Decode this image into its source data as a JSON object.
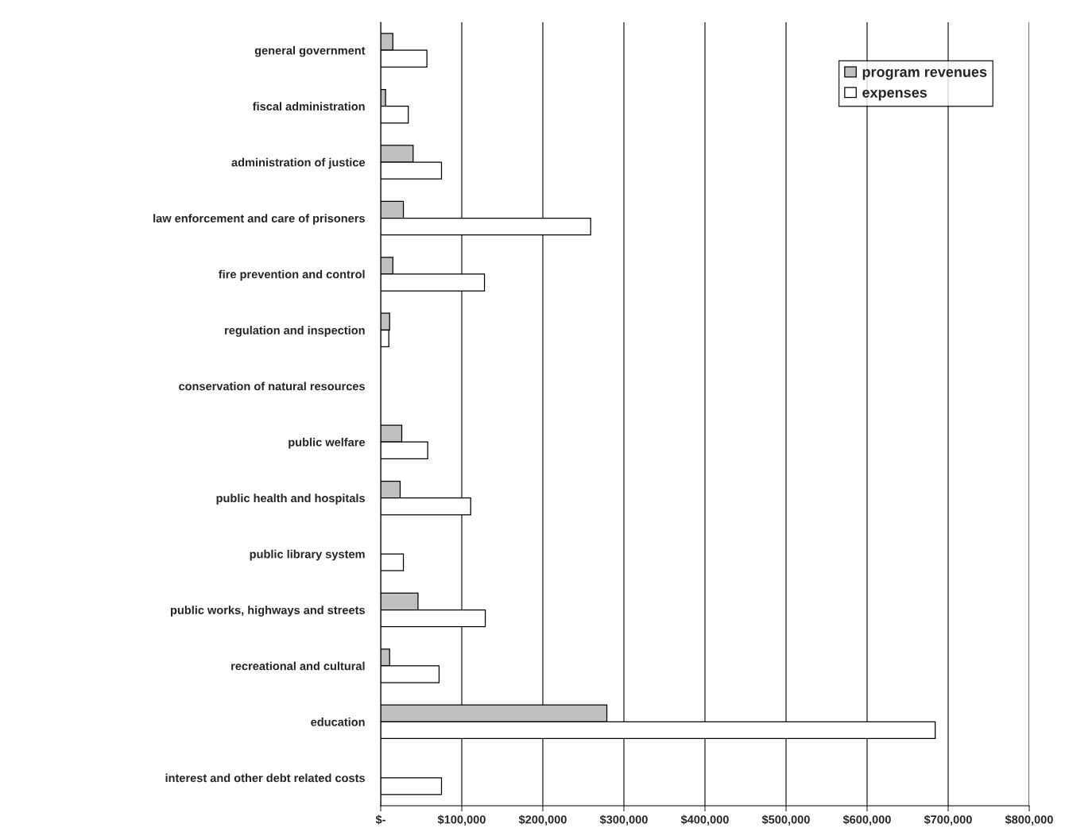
{
  "chart_data": {
    "type": "bar",
    "orientation": "horizontal",
    "categories": [
      "general government",
      "fiscal administration",
      "administration of justice",
      "law enforcement and care of prisoners",
      "fire prevention and control",
      "regulation and inspection",
      "conservation of natural resources",
      "public welfare",
      "public health and hospitals",
      "public library system",
      "public works, highways and streets",
      "recreational and cultural",
      "education",
      "interest and other debt related costs"
    ],
    "series": [
      {
        "name": "program revenues",
        "color": "#c0c0c0",
        "values": [
          15000,
          6000,
          40000,
          28000,
          15000,
          11000,
          null,
          26000,
          24000,
          null,
          46000,
          11000,
          279000,
          null
        ]
      },
      {
        "name": "expenses",
        "color": "#ffffff",
        "values": [
          57000,
          34000,
          75000,
          259000,
          128000,
          10000,
          null,
          58000,
          111000,
          28000,
          129000,
          72000,
          684000,
          75000
        ]
      }
    ],
    "xlim": [
      0,
      800000
    ],
    "xticks": [
      {
        "value": 0,
        "label": "$-"
      },
      {
        "value": 100000,
        "label": "$100,000"
      },
      {
        "value": 200000,
        "label": "$200,000"
      },
      {
        "value": 300000,
        "label": "$300,000"
      },
      {
        "value": 400000,
        "label": "$400,000"
      },
      {
        "value": 500000,
        "label": "$500,000"
      },
      {
        "value": 600000,
        "label": "$600,000"
      },
      {
        "value": 700000,
        "label": "$700,000"
      },
      {
        "value": 800000,
        "label": "$800,000"
      }
    ],
    "grid": "x",
    "legend": "top right"
  }
}
